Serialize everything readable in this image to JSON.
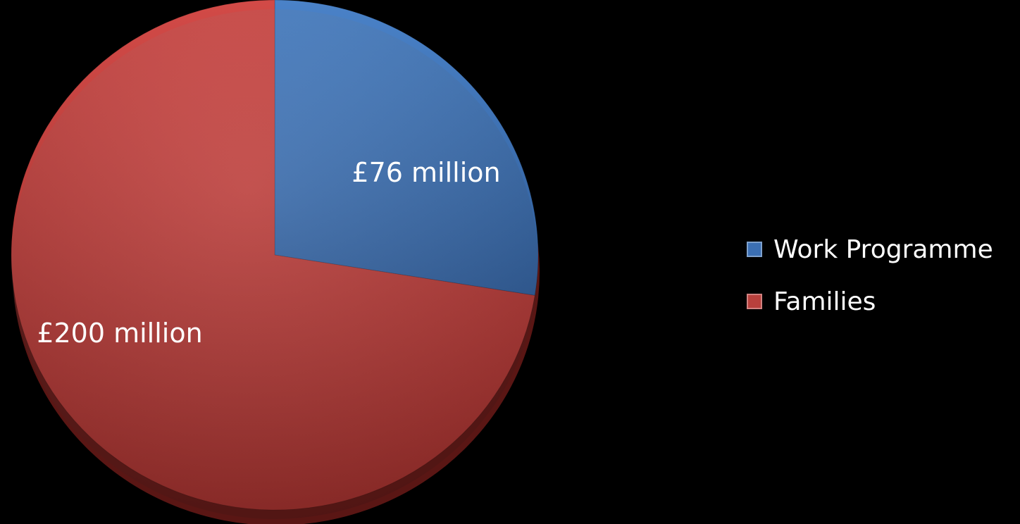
{
  "chart_data": {
    "type": "pie",
    "series": [
      {
        "name": "Work Programme",
        "value": 76,
        "data_label": "£76 million",
        "color": "#3B6FB3"
      },
      {
        "name": "Families",
        "value": 200,
        "data_label": "£200 million",
        "color": "#B8403C"
      }
    ],
    "legend_placement": "right"
  },
  "legend": {
    "items": [
      {
        "label": "Work Programme"
      },
      {
        "label": "Families"
      }
    ]
  },
  "labels": {
    "slice_0": "£76 million",
    "slice_1": "£200 million"
  }
}
